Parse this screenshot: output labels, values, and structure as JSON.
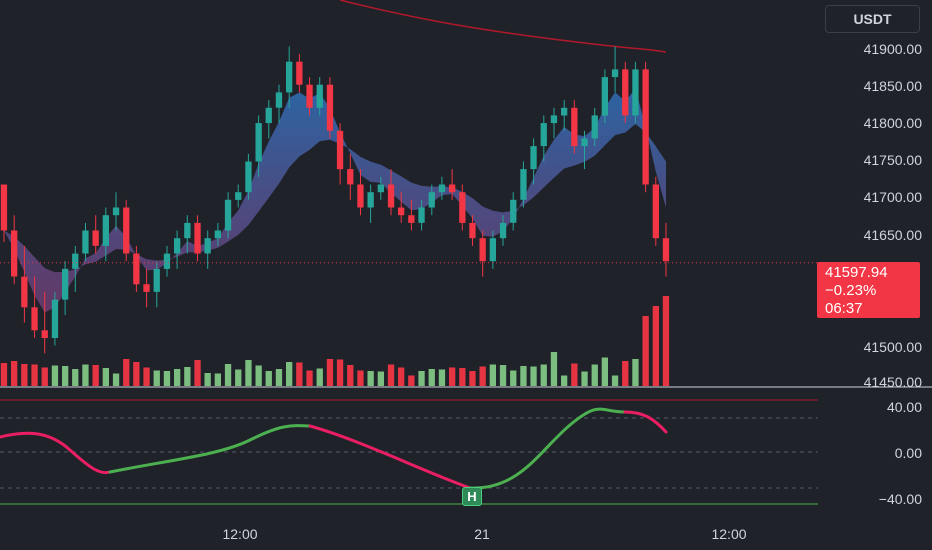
{
  "toolbar": {
    "currency": "USDT"
  },
  "price_axis": {
    "labels": [
      "41900.00",
      "41850.00",
      "41800.00",
      "41750.00",
      "41700.00",
      "41650.00",
      "41500.00",
      "41450.00"
    ]
  },
  "price_tag": {
    "price": "41597.94",
    "change": "−0.23%",
    "countdown": "06:37"
  },
  "oscillator_axis": {
    "labels": [
      "40.00",
      "0.00",
      "−40.00"
    ]
  },
  "oscillator_marker": {
    "label": "H"
  },
  "time_axis": {
    "labels": [
      "12:00",
      "21",
      "12:00"
    ]
  },
  "colors": {
    "background": "#1f2229",
    "up": "#26a69a",
    "down": "#f23645",
    "ma_line": "#b2182b",
    "osc_up": "#4caf50",
    "osc_down": "#e91e63"
  },
  "chart_data": {
    "type": "candlestick",
    "ylim": [
      41440,
      41930
    ],
    "last_price": 41597.94,
    "candles": [
      [
        41700,
        41700,
        41625,
        41640
      ],
      [
        41640,
        41660,
        41570,
        41580
      ],
      [
        41580,
        41620,
        41520,
        41540
      ],
      [
        41540,
        41580,
        41500,
        41510
      ],
      [
        41510,
        41560,
        41480,
        41500
      ],
      [
        41500,
        41560,
        41490,
        41550
      ],
      [
        41550,
        41600,
        41530,
        41590
      ],
      [
        41590,
        41620,
        41560,
        41610
      ],
      [
        41610,
        41650,
        41600,
        41640
      ],
      [
        41640,
        41660,
        41610,
        41620
      ],
      [
        41620,
        41670,
        41600,
        41660
      ],
      [
        41660,
        41690,
        41640,
        41670
      ],
      [
        41670,
        41680,
        41600,
        41610
      ],
      [
        41610,
        41620,
        41560,
        41570
      ],
      [
        41570,
        41590,
        41540,
        41560
      ],
      [
        41560,
        41600,
        41540,
        41590
      ],
      [
        41590,
        41620,
        41580,
        41610
      ],
      [
        41610,
        41640,
        41590,
        41630
      ],
      [
        41630,
        41660,
        41610,
        41650
      ],
      [
        41650,
        41660,
        41600,
        41610
      ],
      [
        41610,
        41640,
        41590,
        41630
      ],
      [
        41630,
        41650,
        41620,
        41640
      ],
      [
        41640,
        41690,
        41630,
        41680
      ],
      [
        41680,
        41700,
        41670,
        41690
      ],
      [
        41690,
        41740,
        41680,
        41730
      ],
      [
        41730,
        41790,
        41710,
        41780
      ],
      [
        41780,
        41810,
        41760,
        41800
      ],
      [
        41800,
        41830,
        41780,
        41820
      ],
      [
        41820,
        41880,
        41800,
        41860
      ],
      [
        41860,
        41870,
        41820,
        41830
      ],
      [
        41830,
        41840,
        41790,
        41800
      ],
      [
        41800,
        41840,
        41790,
        41830
      ],
      [
        41830,
        41840,
        41760,
        41770
      ],
      [
        41770,
        41780,
        41700,
        41720
      ],
      [
        41720,
        41740,
        41680,
        41700
      ],
      [
        41700,
        41720,
        41660,
        41670
      ],
      [
        41670,
        41700,
        41650,
        41690
      ],
      [
        41690,
        41710,
        41680,
        41700
      ],
      [
        41700,
        41720,
        41660,
        41670
      ],
      [
        41670,
        41690,
        41650,
        41660
      ],
      [
        41660,
        41680,
        41640,
        41650
      ],
      [
        41650,
        41680,
        41640,
        41670
      ],
      [
        41670,
        41700,
        41660,
        41690
      ],
      [
        41690,
        41710,
        41680,
        41700
      ],
      [
        41700,
        41720,
        41680,
        41690
      ],
      [
        41690,
        41700,
        41640,
        41650
      ],
      [
        41650,
        41660,
        41620,
        41630
      ],
      [
        41630,
        41640,
        41580,
        41600
      ],
      [
        41600,
        41640,
        41590,
        41630
      ],
      [
        41630,
        41660,
        41620,
        41650
      ],
      [
        41650,
        41690,
        41640,
        41680
      ],
      [
        41680,
        41730,
        41670,
        41720
      ],
      [
        41720,
        41760,
        41700,
        41750
      ],
      [
        41750,
        41790,
        41730,
        41780
      ],
      [
        41780,
        41800,
        41760,
        41790
      ],
      [
        41790,
        41810,
        41770,
        41800
      ],
      [
        41800,
        41810,
        41740,
        41750
      ],
      [
        41750,
        41770,
        41720,
        41760
      ],
      [
        41760,
        41800,
        41750,
        41790
      ],
      [
        41790,
        41850,
        41780,
        41840
      ],
      [
        41840,
        41880,
        41820,
        41850
      ],
      [
        41850,
        41860,
        41780,
        41790
      ],
      [
        41790,
        41860,
        41780,
        41850
      ],
      [
        41850,
        41860,
        41690,
        41700
      ],
      [
        41700,
        41710,
        41620,
        41630
      ],
      [
        41630,
        41650,
        41580,
        41600
      ]
    ],
    "moving_average": [
      41895,
      41890,
      41885,
      41880,
      41878
    ],
    "oscillator": {
      "ylim": [
        -50,
        50
      ],
      "levels": [
        40,
        0,
        -40
      ]
    }
  }
}
